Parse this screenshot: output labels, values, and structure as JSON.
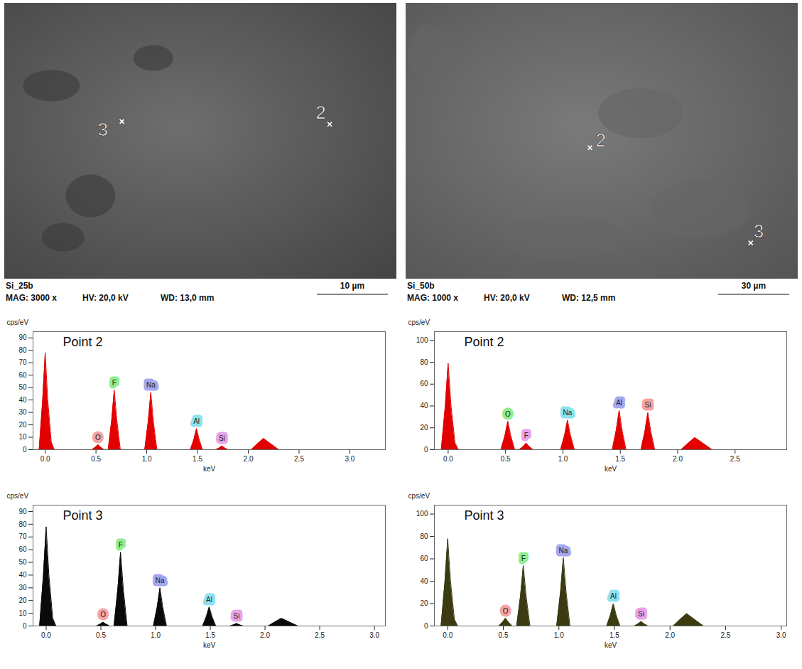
{
  "images": [
    {
      "sample": "Si_25b",
      "magnification": "MAG: 3000 x",
      "voltage": "HV: 20,0 kV",
      "working_distance": "WD: 13,0 mm",
      "scale_bar": "10 µm",
      "points": [
        "2",
        "3"
      ]
    },
    {
      "sample": "Si_50b",
      "magnification": "MAG: 1000 x",
      "voltage": "HV: 20,0 kV",
      "working_distance": "WD: 12,5 mm",
      "scale_bar": "30 µm",
      "points": [
        "2",
        "3"
      ]
    }
  ],
  "chart_data": [
    {
      "type": "area",
      "title": "Point 2",
      "x_label": "keV",
      "y_label": "cps/eV",
      "color": "#e30000",
      "xlim": [
        -0.12,
        3.35
      ],
      "xticks": [
        {
          "value": 0,
          "label": "0.0"
        },
        {
          "value": 0.5,
          "label": "0.5"
        },
        {
          "value": 1,
          "label": "1.0"
        },
        {
          "value": 1.5,
          "label": "1.5"
        },
        {
          "value": 2,
          "label": "2.0"
        },
        {
          "value": 2.5,
          "label": "2.5"
        },
        {
          "value": 3,
          "label": "3.0"
        }
      ],
      "ylim": [
        0,
        95
      ],
      "yticks": [
        0,
        10,
        20,
        30,
        40,
        50,
        60,
        70,
        80,
        90
      ],
      "x": [
        -0.06,
        -0.025,
        0,
        0.025,
        0.06,
        0.09,
        0.46,
        0.495,
        0.52,
        0.545,
        0.58,
        0.62,
        0.655,
        0.68,
        0.705,
        0.74,
        0.98,
        1.015,
        1.04,
        1.065,
        1.1,
        1.43,
        1.465,
        1.49,
        1.515,
        1.55,
        1.68,
        1.715,
        1.74,
        1.765,
        1.8,
        2.03,
        2.1,
        2.15,
        2.21,
        2.3,
        2.9
      ],
      "values": [
        0,
        40,
        78,
        40,
        6,
        0,
        0,
        2,
        4,
        2,
        0,
        0,
        24,
        48,
        24,
        0,
        0,
        23,
        46,
        23,
        0,
        0,
        8.5,
        17,
        8.5,
        0,
        0,
        1.5,
        3,
        1.5,
        0,
        0,
        5.4,
        9,
        5.4,
        0,
        0
      ],
      "annotations": [
        {
          "text": "O",
          "x": 0.52,
          "y": 4,
          "color": "#f5a3a3"
        },
        {
          "text": "F",
          "x": 0.68,
          "y": 48,
          "color": "#90ee90"
        },
        {
          "text": "Na",
          "x": 1.04,
          "y": 46,
          "color": "#a3a8f0"
        },
        {
          "text": "Al",
          "x": 1.49,
          "y": 17,
          "color": "#8fe3f0"
        },
        {
          "text": "Si",
          "x": 1.74,
          "y": 3,
          "color": "#e8a3e8"
        }
      ]
    },
    {
      "type": "area",
      "title": "Point 2",
      "x_label": "keV",
      "y_label": "cps/eV",
      "color": "#e30000",
      "xlim": [
        -0.12,
        2.95
      ],
      "xticks": [
        {
          "value": 0,
          "label": "0.0"
        },
        {
          "value": 0.5,
          "label": "0.5"
        },
        {
          "value": 1,
          "label": "1.0"
        },
        {
          "value": 1.5,
          "label": "1.5"
        },
        {
          "value": 2,
          "label": "2.0"
        },
        {
          "value": 2.5,
          "label": "2.5"
        }
      ],
      "ylim": [
        0,
        108
      ],
      "yticks": [
        0,
        20,
        40,
        60,
        80,
        100
      ],
      "x": [
        -0.06,
        -0.025,
        0,
        0.025,
        0.06,
        0.09,
        0.46,
        0.495,
        0.52,
        0.545,
        0.58,
        0.62,
        0.655,
        0.68,
        0.705,
        0.74,
        0.98,
        1.015,
        1.04,
        1.065,
        1.1,
        1.43,
        1.465,
        1.49,
        1.515,
        1.55,
        1.68,
        1.715,
        1.74,
        1.765,
        1.8,
        2.03,
        2.1,
        2.15,
        2.21,
        2.3,
        2.9
      ],
      "values": [
        0,
        40,
        79,
        40,
        6,
        0,
        0,
        13,
        26,
        13,
        0,
        0,
        3,
        6,
        3,
        0,
        0,
        13.5,
        27,
        13.5,
        0,
        0,
        18,
        36,
        18,
        0,
        0,
        17,
        34,
        17,
        0,
        0,
        6.6,
        11,
        6.6,
        0,
        0
      ],
      "annotations": [
        {
          "text": "O",
          "x": 0.52,
          "y": 26,
          "color": "#90ee90"
        },
        {
          "text": "F",
          "x": 0.68,
          "y": 6,
          "color": "#e8a3e8"
        },
        {
          "text": "Na",
          "x": 1.04,
          "y": 27,
          "color": "#8fe3f0"
        },
        {
          "text": "Al",
          "x": 1.49,
          "y": 36,
          "color": "#a3a8f0"
        },
        {
          "text": "Si",
          "x": 1.74,
          "y": 34,
          "color": "#f5a3a3"
        }
      ]
    },
    {
      "type": "area",
      "title": "Point 3",
      "x_label": "keV",
      "y_label": "cps/eV",
      "color": "#0a0a0a",
      "xlim": [
        -0.12,
        3.1
      ],
      "xticks": [
        {
          "value": 0,
          "label": "0.0"
        },
        {
          "value": 0.5,
          "label": "0.5"
        },
        {
          "value": 1,
          "label": "1.0"
        },
        {
          "value": 1.5,
          "label": "1.5"
        },
        {
          "value": 2,
          "label": "2.0"
        },
        {
          "value": 2.5,
          "label": "2.5"
        },
        {
          "value": 3,
          "label": "3.0"
        }
      ],
      "ylim": [
        0,
        95
      ],
      "yticks": [
        0,
        10,
        20,
        30,
        40,
        50,
        60,
        70,
        80,
        90
      ],
      "x": [
        -0.06,
        -0.025,
        0,
        0.025,
        0.06,
        0.09,
        0.46,
        0.495,
        0.52,
        0.545,
        0.58,
        0.62,
        0.655,
        0.68,
        0.705,
        0.74,
        0.98,
        1.015,
        1.04,
        1.065,
        1.1,
        1.43,
        1.465,
        1.49,
        1.515,
        1.55,
        1.68,
        1.715,
        1.74,
        1.765,
        1.8,
        2.03,
        2.1,
        2.15,
        2.21,
        2.3,
        2.9
      ],
      "values": [
        0,
        40,
        78,
        40,
        6,
        0,
        0,
        1.5,
        3,
        1.5,
        0,
        0,
        29,
        58,
        29,
        0,
        0,
        15,
        30,
        15,
        0,
        0,
        7.5,
        15,
        7.5,
        0,
        0,
        1,
        2,
        1,
        0,
        0,
        3.6,
        6,
        3.6,
        0,
        0
      ],
      "annotations": [
        {
          "text": "O",
          "x": 0.52,
          "y": 3,
          "color": "#f5a3a3"
        },
        {
          "text": "F",
          "x": 0.68,
          "y": 58,
          "color": "#90ee90"
        },
        {
          "text": "Na",
          "x": 1.04,
          "y": 30,
          "color": "#a3a8f0"
        },
        {
          "text": "Al",
          "x": 1.49,
          "y": 15,
          "color": "#8fe3f0"
        },
        {
          "text": "Si",
          "x": 1.74,
          "y": 2,
          "color": "#e8a3e8"
        }
      ]
    },
    {
      "type": "area",
      "title": "Point 3",
      "x_label": "keV",
      "y_label": "cps/eV",
      "color": "#3b3b12",
      "xlim": [
        -0.12,
        3.05
      ],
      "xticks": [
        {
          "value": 0,
          "label": "0.0"
        },
        {
          "value": 0.5,
          "label": "0.5"
        },
        {
          "value": 1,
          "label": "1.0"
        },
        {
          "value": 1.5,
          "label": "1.5"
        },
        {
          "value": 2,
          "label": "2.0"
        },
        {
          "value": 2.5,
          "label": "2.5"
        },
        {
          "value": 3,
          "label": "3.0"
        }
      ],
      "ylim": [
        0,
        108
      ],
      "yticks": [
        0,
        20,
        40,
        60,
        80,
        100
      ],
      "x": [
        -0.06,
        -0.025,
        0,
        0.025,
        0.06,
        0.09,
        0.46,
        0.495,
        0.52,
        0.545,
        0.58,
        0.62,
        0.655,
        0.68,
        0.705,
        0.74,
        0.98,
        1.015,
        1.04,
        1.065,
        1.1,
        1.43,
        1.465,
        1.49,
        1.515,
        1.55,
        1.68,
        1.715,
        1.74,
        1.765,
        1.8,
        2.03,
        2.1,
        2.15,
        2.21,
        2.3,
        2.9
      ],
      "values": [
        0,
        40,
        78,
        40,
        6,
        0,
        0,
        3.5,
        7,
        3.5,
        0,
        0,
        27,
        54,
        27,
        0,
        0,
        30.5,
        61,
        30.5,
        0,
        0,
        10,
        20,
        10,
        0,
        0,
        2,
        4,
        2,
        0,
        0,
        6.6,
        11,
        6.6,
        0,
        0
      ],
      "annotations": [
        {
          "text": "O",
          "x": 0.52,
          "y": 7,
          "color": "#f5a3a3"
        },
        {
          "text": "F",
          "x": 0.68,
          "y": 54,
          "color": "#90ee90"
        },
        {
          "text": "Na",
          "x": 1.04,
          "y": 61,
          "color": "#a3a8f0"
        },
        {
          "text": "Al",
          "x": 1.49,
          "y": 20,
          "color": "#8fe3f0"
        },
        {
          "text": "Si",
          "x": 1.74,
          "y": 4,
          "color": "#e8a3e8"
        }
      ]
    }
  ]
}
